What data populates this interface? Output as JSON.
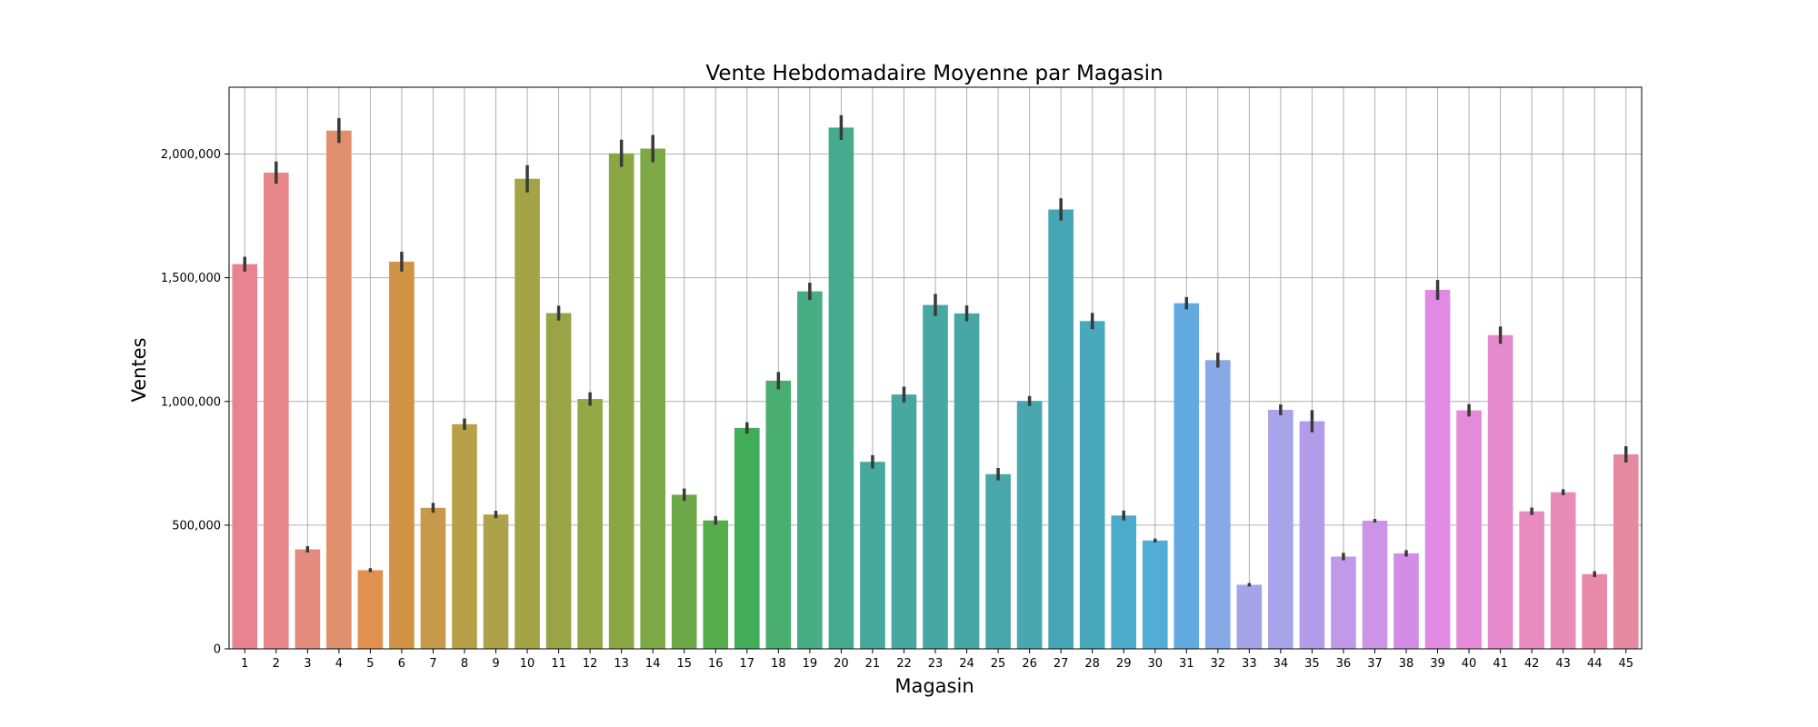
{
  "chart_data": {
    "type": "bar",
    "title": "Vente Hebdomadaire Moyenne par Magasin",
    "xlabel": "Magasin",
    "ylabel": "Ventes",
    "ylim": [
      0,
      2270000
    ],
    "yticks": [
      0,
      500000,
      1000000,
      1500000,
      2000000
    ],
    "ytick_labels": [
      "0",
      "500,000",
      "1,000,000",
      "1,500,000",
      "2,000,000"
    ],
    "grid": true,
    "categories": [
      "1",
      "2",
      "3",
      "4",
      "5",
      "6",
      "7",
      "8",
      "9",
      "10",
      "11",
      "12",
      "13",
      "14",
      "15",
      "16",
      "17",
      "18",
      "19",
      "20",
      "21",
      "22",
      "23",
      "24",
      "25",
      "26",
      "27",
      "28",
      "29",
      "30",
      "31",
      "32",
      "33",
      "34",
      "35",
      "36",
      "37",
      "38",
      "39",
      "40",
      "41",
      "42",
      "43",
      "44",
      "45"
    ],
    "values": [
      1555000,
      1925000,
      402000,
      2095000,
      318000,
      1565000,
      570000,
      908000,
      543000,
      1900000,
      1357000,
      1010000,
      2003000,
      2022000,
      623000,
      519000,
      893000,
      1084000,
      1445000,
      2107000,
      756000,
      1028000,
      1390000,
      1356000,
      706000,
      1002000,
      1776000,
      1325000,
      539000,
      438000,
      1397000,
      1167000,
      259000,
      966000,
      920000,
      373000,
      518000,
      386000,
      1451000,
      964000,
      1268000,
      556000,
      633000,
      302000,
      786000
    ],
    "error": [
      30000,
      45000,
      13000,
      50000,
      8000,
      40000,
      20000,
      23000,
      15000,
      55000,
      30000,
      27000,
      55000,
      55000,
      25000,
      18000,
      23000,
      35000,
      35000,
      50000,
      27000,
      32000,
      45000,
      32000,
      25000,
      20000,
      45000,
      33000,
      20000,
      8000,
      25000,
      30000,
      7000,
      22000,
      45000,
      15000,
      7000,
      13000,
      40000,
      25000,
      35000,
      15000,
      12000,
      12000,
      33000
    ],
    "colors": [
      "#e8838f",
      "#e8878a",
      "#e48b7c",
      "#e0916b",
      "#e0914f",
      "#d29346",
      "#c69a4a",
      "#b8a048",
      "#ada249",
      "#a4a447",
      "#9aa446",
      "#93a745",
      "#8aa744",
      "#7ca946",
      "#6ea949",
      "#56ad4b",
      "#42ad58",
      "#4aae70",
      "#47ad84",
      "#46aa8f",
      "#46a99b",
      "#46a89e",
      "#47a7a3",
      "#47a7a4",
      "#48a7a8",
      "#48a7af",
      "#47a6b5",
      "#48a8bc",
      "#4cabca",
      "#51acd6",
      "#62aae0",
      "#88a8e6",
      "#a6a4e8",
      "#a8a4ea",
      "#b29cea",
      "#c298ea",
      "#cc94e7",
      "#d28ee7",
      "#e18ae4",
      "#e58ad8",
      "#e58acd",
      "#e88bc0",
      "#e88bb6",
      "#e889aa",
      "#e68aa2"
    ]
  }
}
